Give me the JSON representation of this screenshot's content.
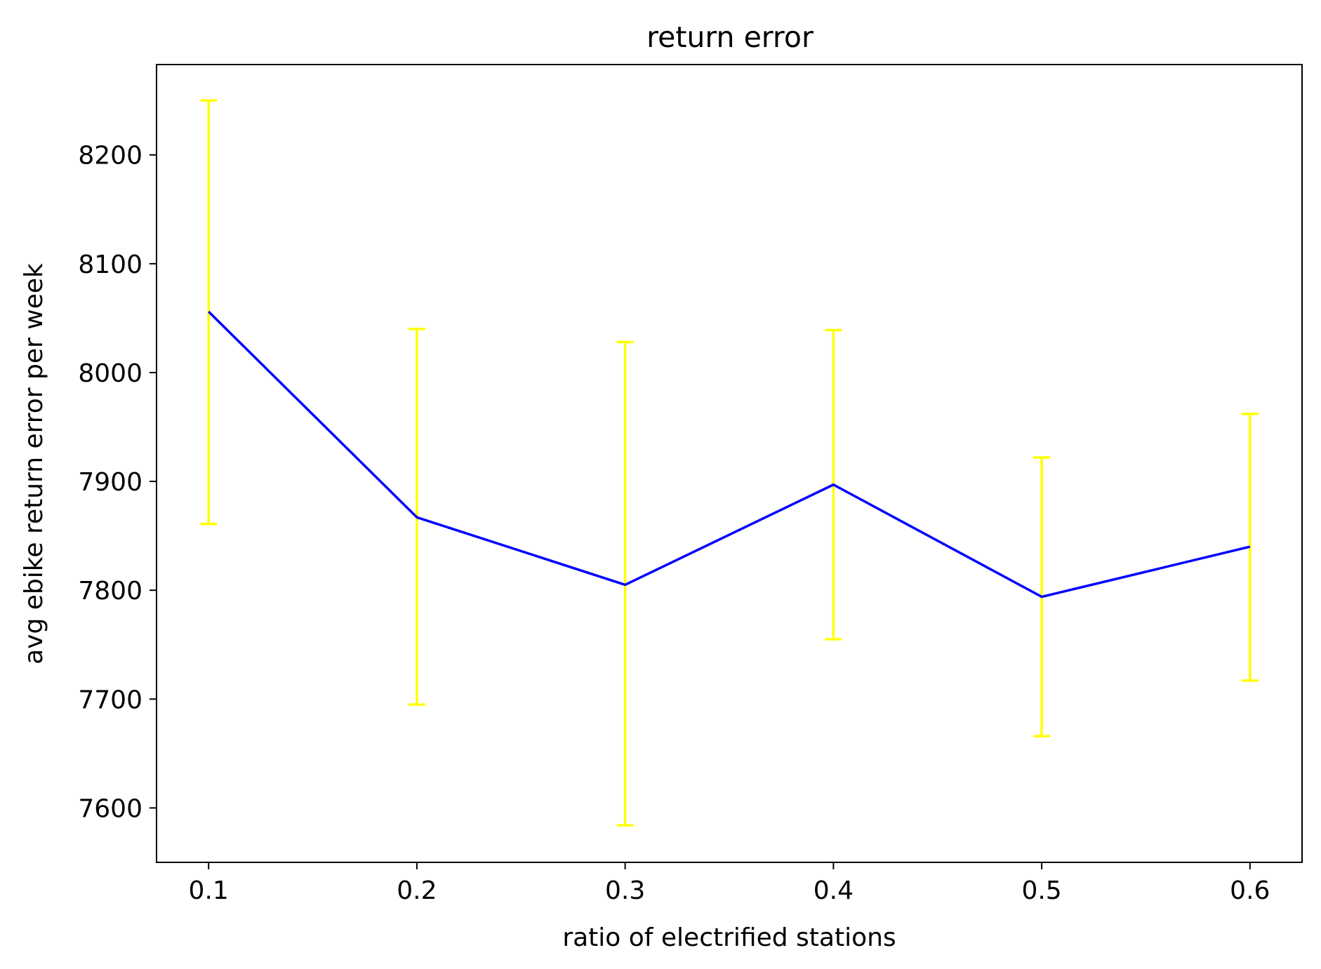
{
  "chart_data": {
    "type": "line",
    "title": "return error",
    "xlabel": "ratio of electrified stations",
    "ylabel": "avg ebike return error per week",
    "x": [
      0.1,
      0.2,
      0.3,
      0.4,
      0.5,
      0.6
    ],
    "xticks": [
      "0.1",
      "0.2",
      "0.3",
      "0.4",
      "0.5",
      "0.6"
    ],
    "yticks": [
      "7600",
      "7700",
      "7800",
      "7900",
      "8000",
      "8100",
      "8200"
    ],
    "xlim": [
      0.075,
      0.625
    ],
    "ylim": [
      7550,
      8283
    ],
    "grid": false,
    "series": [
      {
        "values": [
          8056,
          7867,
          7805,
          7897,
          7794,
          7840
        ],
        "err_low": [
          7861,
          7695,
          7584,
          7755,
          7666,
          7717
        ],
        "err_high": [
          8250,
          8040,
          8028,
          8039,
          7922,
          7962
        ],
        "line_color": "#0000ff",
        "errorbar_color": "#ffff00"
      }
    ]
  }
}
